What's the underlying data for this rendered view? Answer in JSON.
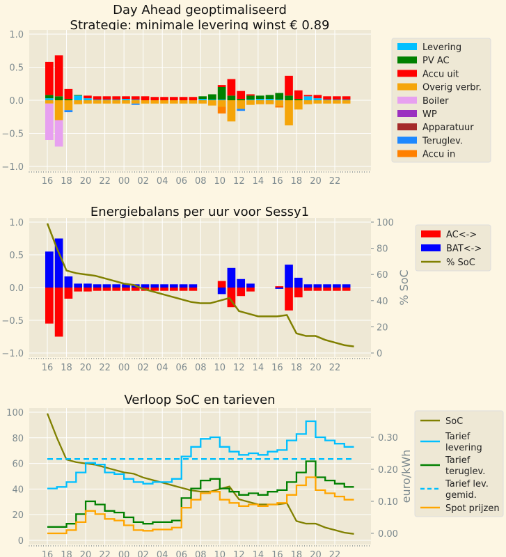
{
  "colors": {
    "background": "#fdf6e3",
    "plot_background": "#eee8d5",
    "grid": "#ffffff"
  },
  "x_tick_labels": [
    "16",
    "18",
    "20",
    "22",
    "00",
    "02",
    "04",
    "06",
    "08",
    "10",
    "12",
    "14",
    "16",
    "18",
    "20",
    "22"
  ],
  "hours": [
    "16:00",
    "17:00",
    "18:00",
    "19:00",
    "20:00",
    "21:00",
    "22:00",
    "23:00",
    "00:00",
    "01:00",
    "02:00",
    "03:00",
    "04:00",
    "05:00",
    "06:00",
    "07:00",
    "08:00",
    "09:00",
    "10:00",
    "11:00",
    "12:00",
    "13:00",
    "14:00",
    "15:00",
    "16:00",
    "17:00",
    "18:00",
    "19:00",
    "20:00",
    "21:00",
    "22:00",
    "23:00"
  ],
  "chart_data": [
    {
      "type": "bar",
      "title": [
        "Day Ahead geoptimaliseerd",
        "Strategie: minimale levering winst € 0.89"
      ],
      "ylim": [
        -1.0,
        1.0
      ],
      "y_ticks": [
        "1.0",
        "0.5",
        "0.0",
        "−0.5",
        "−1.0"
      ],
      "legend_position": "right",
      "series": [
        {
          "name": "Levering",
          "color": "#00bfff",
          "values": [
            0.03,
            0,
            0,
            0.07,
            0.03,
            0.01,
            0.01,
            0.01,
            0.02,
            0.01,
            0,
            0,
            0,
            0,
            0,
            0,
            0.02,
            0.01,
            0.01,
            0,
            0,
            0.01,
            0.02,
            0.02,
            0.01,
            0,
            0,
            0.06,
            0.03,
            0.01,
            0.01,
            0.01
          ]
        },
        {
          "name": "PV AC",
          "color": "#008000",
          "values": [
            0.05,
            0.06,
            0.02,
            0.01,
            0,
            0,
            0,
            0,
            0,
            0,
            0,
            0,
            0,
            0,
            0,
            0,
            0.04,
            0.08,
            0.19,
            0.07,
            0.02,
            0.06,
            0.05,
            0.06,
            0.1,
            0.07,
            0.02,
            0,
            0,
            0,
            0,
            0
          ]
        },
        {
          "name": "Accu uit",
          "color": "#ff0000",
          "values": [
            0.5,
            0.62,
            0.15,
            0,
            0.04,
            0.05,
            0.05,
            0.05,
            0.04,
            0.05,
            0.06,
            0.05,
            0.05,
            0.05,
            0.05,
            0.05,
            0,
            0,
            0.03,
            0.25,
            0.12,
            0.02,
            0,
            0,
            0,
            0.3,
            0.13,
            0.02,
            0.05,
            0.05,
            0.05,
            0.05
          ]
        },
        {
          "name": "Overig verbr.",
          "color": "#f5a50a",
          "values": [
            -0.05,
            -0.3,
            -0.15,
            -0.06,
            -0.05,
            -0.05,
            -0.05,
            -0.05,
            -0.05,
            -0.05,
            -0.05,
            -0.05,
            -0.05,
            -0.05,
            -0.05,
            -0.05,
            -0.05,
            -0.08,
            -0.1,
            -0.32,
            -0.13,
            -0.07,
            -0.06,
            -0.06,
            -0.08,
            -0.38,
            -0.14,
            -0.06,
            -0.05,
            -0.05,
            -0.05,
            -0.05
          ]
        },
        {
          "name": "Boiler",
          "color": "#e7a0f0",
          "values": [
            -0.55,
            -0.4,
            0,
            0,
            0,
            0,
            0,
            0,
            0,
            0,
            0,
            0,
            0,
            0,
            0,
            0,
            0,
            0,
            0,
            0,
            0,
            0,
            0,
            0,
            0,
            0,
            0,
            0,
            0,
            0,
            0,
            0
          ]
        },
        {
          "name": "WP",
          "color": "#9b30c0",
          "values": [
            0,
            0,
            0,
            0,
            0,
            0,
            0,
            0,
            0,
            0,
            0,
            0,
            0,
            0,
            0,
            0,
            0,
            0,
            0,
            0,
            0,
            0,
            0,
            0,
            0,
            0,
            0,
            0,
            0,
            0,
            0,
            0
          ]
        },
        {
          "name": "Apparatuur",
          "color": "#a52a2a",
          "values": [
            0,
            0,
            0,
            0,
            0,
            0,
            0,
            0,
            0,
            0,
            0,
            0,
            0,
            0,
            0,
            0,
            0,
            0,
            0,
            0,
            0,
            0,
            0,
            0,
            0,
            0,
            0,
            0,
            0,
            0,
            0,
            0
          ]
        },
        {
          "name": "Teruglev.",
          "color": "#1e88ff",
          "values": [
            0,
            0,
            -0.03,
            0,
            0,
            0,
            0,
            0,
            0,
            -0.02,
            0,
            0,
            0,
            0,
            0,
            0,
            0,
            0,
            0,
            0,
            -0.03,
            0,
            0,
            0,
            0,
            0,
            0,
            0,
            0,
            0,
            0,
            0
          ]
        },
        {
          "name": "Accu in",
          "color": "#ff8000",
          "values": [
            0,
            0,
            0,
            0,
            0,
            0,
            0,
            0,
            0,
            0,
            0,
            0,
            0,
            0,
            0,
            0,
            0,
            0,
            -0.1,
            0,
            0,
            0,
            0,
            0,
            -0.03,
            0,
            0,
            0,
            0,
            0,
            0,
            0
          ]
        }
      ]
    },
    {
      "type": "bar",
      "title": "Energiebalans per uur voor Sessy1",
      "ylim": [
        -1.0,
        1.0
      ],
      "y_ticks": [
        "1.0",
        "0.5",
        "0.0",
        "−0.5",
        "−1.0"
      ],
      "y2lim": [
        0,
        100
      ],
      "y2_ticks": [
        "100",
        "80",
        "60",
        "40",
        "20",
        "0"
      ],
      "y2label": "% SoC",
      "legend_position": "right",
      "series": [
        {
          "name": "AC<->",
          "color": "#ff0000",
          "values": [
            -0.55,
            -0.75,
            -0.17,
            -0.06,
            -0.06,
            -0.05,
            -0.05,
            -0.05,
            -0.05,
            -0.05,
            -0.05,
            -0.05,
            -0.05,
            -0.05,
            -0.05,
            -0.05,
            0,
            0,
            0.1,
            -0.3,
            -0.13,
            -0.06,
            0,
            0,
            0.02,
            -0.35,
            -0.15,
            -0.05,
            -0.05,
            -0.05,
            -0.05,
            -0.05
          ]
        },
        {
          "name": "BAT<->",
          "color": "#0000ff",
          "values": [
            0.55,
            0.75,
            0.17,
            0.06,
            0.06,
            0.05,
            0.05,
            0.05,
            0.05,
            0.05,
            0.05,
            0.05,
            0.05,
            0.05,
            0.05,
            0.05,
            0,
            0,
            -0.1,
            0.3,
            0.13,
            0.06,
            0,
            0,
            -0.02,
            0.35,
            0.15,
            0.05,
            0.05,
            0.05,
            0.05,
            0.05
          ]
        },
        {
          "name": "% SoC",
          "color": "#808000",
          "type": "line",
          "values": [
            99,
            80,
            63,
            61,
            60,
            59,
            57,
            55,
            53,
            52,
            49,
            47,
            45,
            43,
            41,
            39,
            38,
            38,
            40,
            42,
            32,
            30,
            28,
            28,
            28,
            29,
            15,
            13,
            13,
            10,
            8,
            6
          ]
        }
      ]
    },
    {
      "type": "line",
      "title": "Verloop SoC en tarieven",
      "ylim": [
        0,
        100
      ],
      "y_ticks": [
        "100",
        "80",
        "60",
        "40",
        "20",
        "0"
      ],
      "y2lim": [
        -0.016,
        0.37
      ],
      "y2_ticks": [
        "0.30",
        "0.20",
        "0.10",
        "0.00"
      ],
      "y2label": "euro/kWh",
      "legend_position": "right",
      "series": [
        {
          "name": "SoC",
          "color": "#808000",
          "axis": "left",
          "values": [
            99,
            80,
            63,
            61,
            60,
            59,
            57,
            55,
            53,
            52,
            49,
            47,
            45,
            43,
            41,
            39,
            38,
            38,
            40,
            42,
            32,
            30,
            28,
            28,
            28,
            29,
            15,
            13,
            13,
            10,
            8,
            6
          ]
        },
        {
          "name": "Tarief levering",
          "color": "#00bfff",
          "axis": "right",
          "values": [
            0.14,
            0.145,
            0.16,
            0.19,
            0.22,
            0.215,
            0.19,
            0.185,
            0.17,
            0.16,
            0.155,
            0.16,
            0.16,
            0.17,
            0.24,
            0.27,
            0.295,
            0.3,
            0.27,
            0.255,
            0.245,
            0.25,
            0.245,
            0.255,
            0.26,
            0.29,
            0.31,
            0.35,
            0.3,
            0.29,
            0.28,
            0.27
          ]
        },
        {
          "name": "Tarief teruglev.",
          "color": "#008000",
          "axis": "right",
          "values": [
            0.02,
            0.02,
            0.03,
            0.06,
            0.1,
            0.09,
            0.07,
            0.065,
            0.05,
            0.035,
            0.03,
            0.035,
            0.035,
            0.04,
            0.11,
            0.14,
            0.165,
            0.17,
            0.14,
            0.13,
            0.12,
            0.125,
            0.12,
            0.13,
            0.135,
            0.16,
            0.19,
            0.225,
            0.175,
            0.165,
            0.155,
            0.145
          ]
        },
        {
          "name": "Tarief lev. gemid.",
          "color": "#00bfff",
          "axis": "right",
          "dashed": true,
          "values": [
            0.232
          ]
        },
        {
          "name": "Spot prijzen",
          "color": "#ffa500",
          "axis": "right",
          "values": [
            0.0,
            0.0,
            0.01,
            0.035,
            0.07,
            0.06,
            0.045,
            0.04,
            0.025,
            0.01,
            0.008,
            0.012,
            0.012,
            0.018,
            0.08,
            0.105,
            0.125,
            0.13,
            0.105,
            0.095,
            0.085,
            0.09,
            0.085,
            0.09,
            0.095,
            0.12,
            0.15,
            0.175,
            0.135,
            0.125,
            0.115,
            0.105
          ]
        }
      ]
    }
  ],
  "legends": [
    [
      "Levering",
      "PV AC",
      "Accu uit",
      "Overig verbr.",
      "Boiler",
      "WP",
      "Apparatuur",
      "Teruglev.",
      "Accu in"
    ],
    [
      "AC<->",
      "BAT<->",
      "% SoC"
    ],
    [
      [
        "SoC"
      ],
      [
        "Tarief",
        "levering"
      ],
      [
        "Tarief",
        "teruglev."
      ],
      [
        "Tarief lev.",
        "gemid."
      ],
      [
        "Spot prijzen"
      ]
    ]
  ]
}
